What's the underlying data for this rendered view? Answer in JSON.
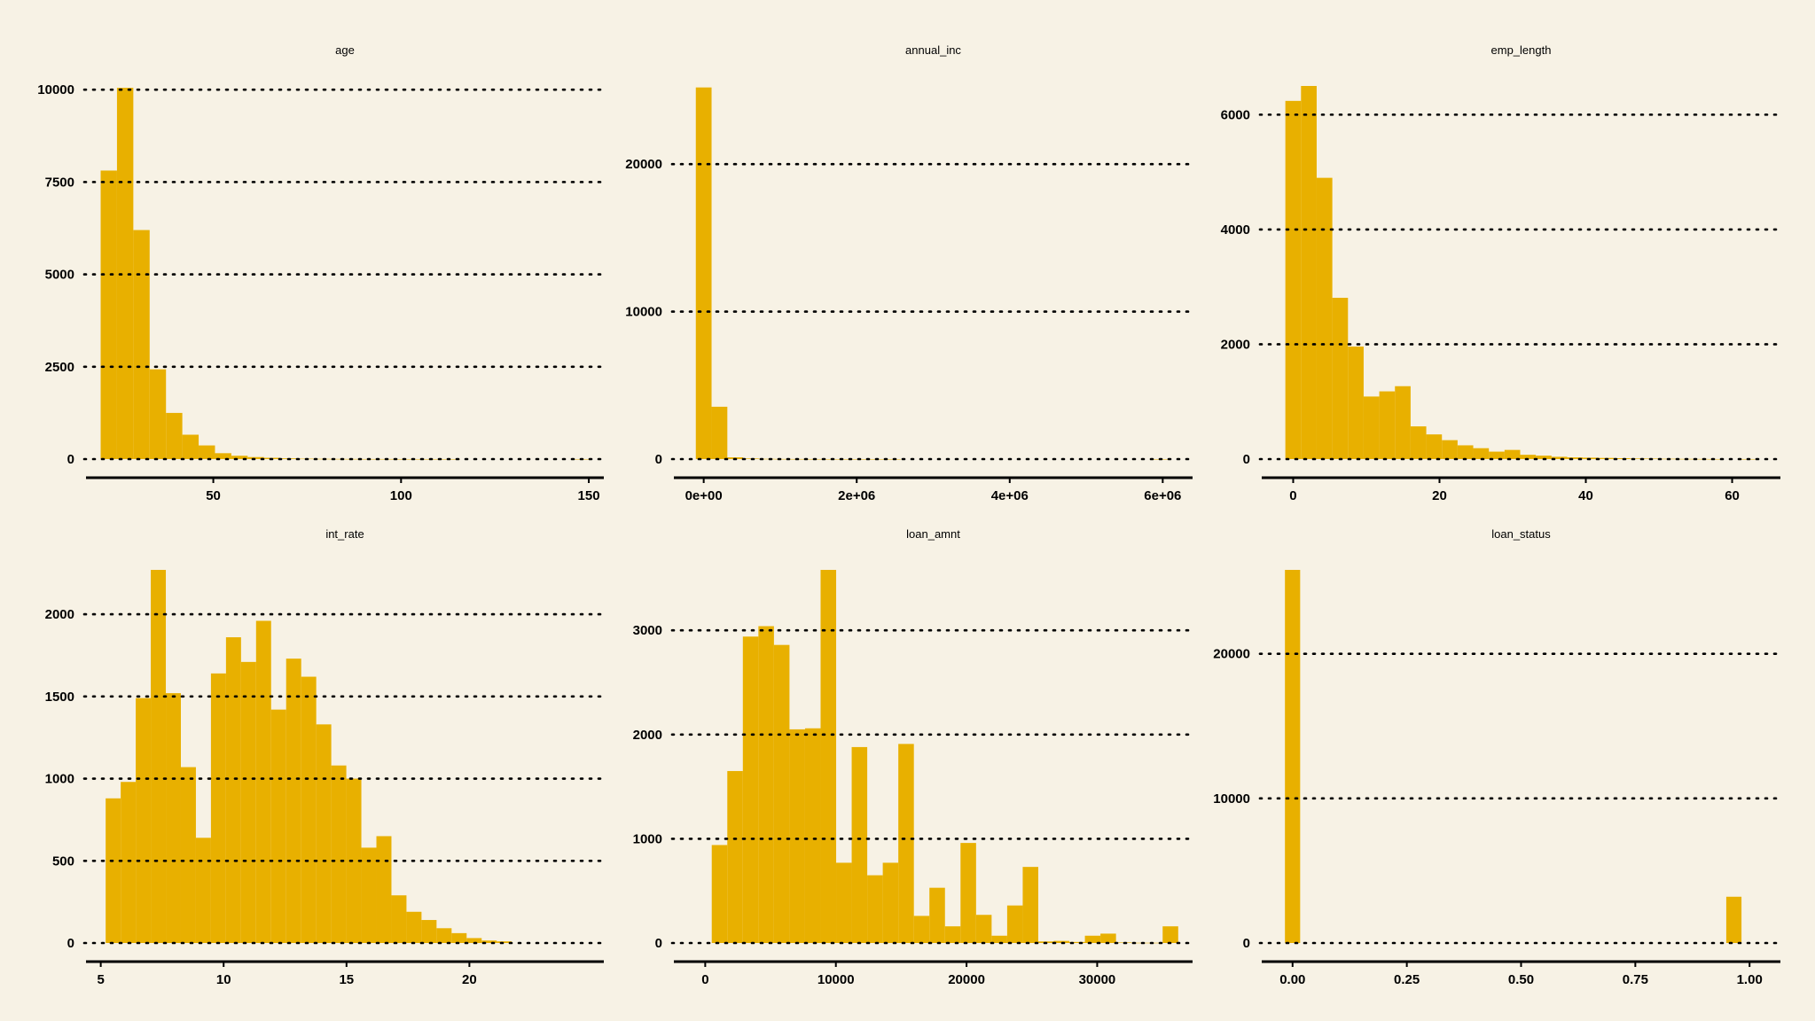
{
  "theme": {
    "background": "#f7f2e5",
    "bar_color": "#e8b000",
    "grid_color": "#000000"
  },
  "chart_data": [
    {
      "type": "bar",
      "title": "age",
      "xlabel": "",
      "ylabel": "",
      "grid": "horizontal-dotted",
      "xlim": [
        16.1,
        154
      ],
      "ylim": [
        0,
        10100
      ],
      "x_ticks": [
        50,
        100,
        150
      ],
      "y_ticks": [
        0,
        2500,
        5000,
        7500,
        10000
      ],
      "bin_start": 20,
      "bin_width": 4.35,
      "values": [
        7810,
        10050,
        6200,
        2430,
        1250,
        660,
        370,
        160,
        90,
        55,
        35,
        20,
        10,
        6,
        4,
        3,
        2,
        2,
        1,
        1,
        1,
        1,
        0,
        0,
        0,
        0,
        0,
        0,
        0,
        1
      ]
    },
    {
      "type": "bar",
      "title": "annual_inc",
      "xlabel": "",
      "ylabel": "",
      "grid": "horizontal-dotted",
      "xlim": [
        -390000,
        6390000
      ],
      "ylim": [
        0,
        25300
      ],
      "x_ticks": [
        0,
        2000000,
        4000000,
        6000000
      ],
      "x_tick_labels": [
        "0e+00",
        "2e+06",
        "4e+06",
        "6e+06"
      ],
      "y_ticks": [
        0,
        10000,
        20000
      ],
      "bin_start": -103000,
      "bin_width": 206000,
      "values": [
        25200,
        3550,
        120,
        40,
        15,
        8,
        5,
        3,
        2,
        1,
        1,
        1,
        1,
        0,
        0,
        0,
        0,
        0,
        0,
        0,
        0,
        0,
        0,
        0,
        0,
        0,
        0,
        0,
        0,
        1
      ]
    },
    {
      "type": "bar",
      "title": "emp_length",
      "xlabel": "",
      "ylabel": "",
      "grid": "horizontal-dotted",
      "xlim": [
        -4.3,
        66.6
      ],
      "ylim": [
        0,
        6500
      ],
      "x_ticks": [
        0,
        20,
        40,
        60
      ],
      "y_ticks": [
        0,
        2000,
        4000,
        6000
      ],
      "bin_start": -1.07,
      "bin_width": 2.14,
      "values": [
        6240,
        6500,
        4900,
        2810,
        1960,
        1090,
        1180,
        1270,
        570,
        430,
        330,
        240,
        190,
        130,
        160,
        75,
        60,
        40,
        30,
        25,
        20,
        15,
        10,
        8,
        5,
        3,
        2,
        1,
        0,
        1
      ]
    },
    {
      "type": "bar",
      "title": "int_rate",
      "xlabel": "",
      "ylabel": "",
      "grid": "horizontal-dotted",
      "xlim": [
        4.4,
        25.47
      ],
      "ylim": [
        0,
        2270
      ],
      "x_ticks": [
        5,
        10,
        15,
        20
      ],
      "y_ticks": [
        0,
        500,
        1000,
        1500,
        2000
      ],
      "bin_start": 5.2,
      "bin_width": 0.612,
      "values": [
        880,
        980,
        1490,
        2270,
        1520,
        1070,
        640,
        1640,
        1860,
        1710,
        1960,
        1420,
        1730,
        1620,
        1330,
        1080,
        1000,
        580,
        650,
        290,
        190,
        140,
        90,
        60,
        30,
        15,
        10
      ]
    },
    {
      "type": "bar",
      "title": "loan_amnt",
      "xlabel": "",
      "ylabel": "",
      "grid": "horizontal-dotted",
      "xlim": [
        -2400,
        37300
      ],
      "ylim": [
        0,
        3580
      ],
      "x_ticks": [
        0,
        10000,
        20000,
        30000
      ],
      "y_ticks": [
        0,
        1000,
        2000,
        3000
      ],
      "bin_start": 500,
      "bin_width": 1190,
      "values": [
        940,
        1650,
        2940,
        3040,
        2860,
        2050,
        2060,
        3580,
        770,
        1880,
        650,
        770,
        1910,
        260,
        530,
        160,
        960,
        270,
        70,
        360,
        730,
        15,
        20,
        10,
        70,
        90,
        5,
        2,
        2,
        160
      ]
    },
    {
      "type": "bar",
      "title": "loan_status",
      "xlabel": "",
      "ylabel": "",
      "grid": "horizontal-dotted",
      "xlim": [
        -0.0675,
        1.0675
      ],
      "ylim": [
        0,
        25800
      ],
      "x_ticks": [
        0,
        0.25,
        0.5,
        0.75,
        1
      ],
      "x_tick_labels": [
        "0.00",
        "0.25",
        "0.50",
        "0.75",
        "1.00"
      ],
      "y_ticks": [
        0,
        10000,
        20000
      ],
      "bin_start": -0.0167,
      "bin_width": 0.0333,
      "values": [
        25800,
        0,
        0,
        0,
        0,
        0,
        0,
        0,
        0,
        0,
        0,
        0,
        0,
        0,
        0,
        0,
        0,
        0,
        0,
        0,
        0,
        0,
        0,
        0,
        0,
        0,
        0,
        0,
        0,
        3200
      ]
    }
  ]
}
